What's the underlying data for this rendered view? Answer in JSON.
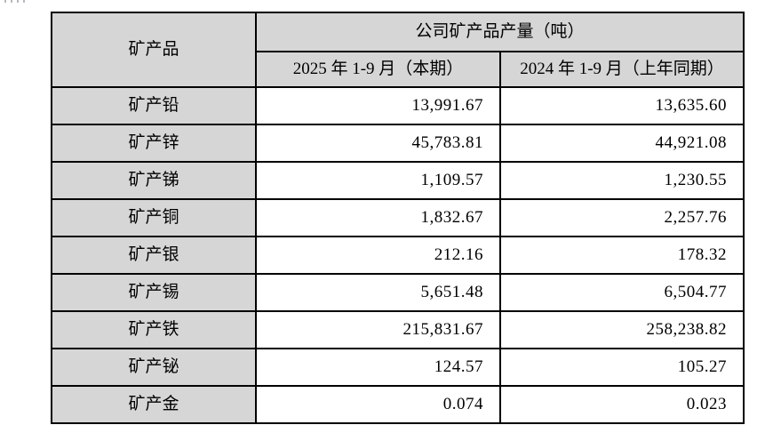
{
  "page": {
    "background": "#ffffff",
    "table_border_color": "#000000",
    "header_bg_color": "#d6d6d6",
    "cell_bg_color": "#ffffff"
  },
  "table": {
    "header": {
      "product_column": "矿产品",
      "output_group": "公司矿产品产量（吨）",
      "period_current": "2025 年 1-9 月（本期）",
      "period_prior": "2024 年 1-9 月（上年同期）"
    },
    "rows": [
      {
        "product": "矿产铅",
        "current": "13,991.67",
        "prior": "13,635.60"
      },
      {
        "product": "矿产锌",
        "current": "45,783.81",
        "prior": "44,921.08"
      },
      {
        "product": "矿产锑",
        "current": "1,109.57",
        "prior": "1,230.55"
      },
      {
        "product": "矿产铜",
        "current": "1,832.67",
        "prior": "2,257.76"
      },
      {
        "product": "矿产银",
        "current": "212.16",
        "prior": "178.32"
      },
      {
        "product": "矿产锡",
        "current": "5,651.48",
        "prior": "6,504.77"
      },
      {
        "product": "矿产铁",
        "current": "215,831.67",
        "prior": "258,238.82"
      },
      {
        "product": "矿产铋",
        "current": "124.57",
        "prior": "105.27"
      },
      {
        "product": "矿产金",
        "current": "0.074",
        "prior": "0.023"
      }
    ]
  }
}
